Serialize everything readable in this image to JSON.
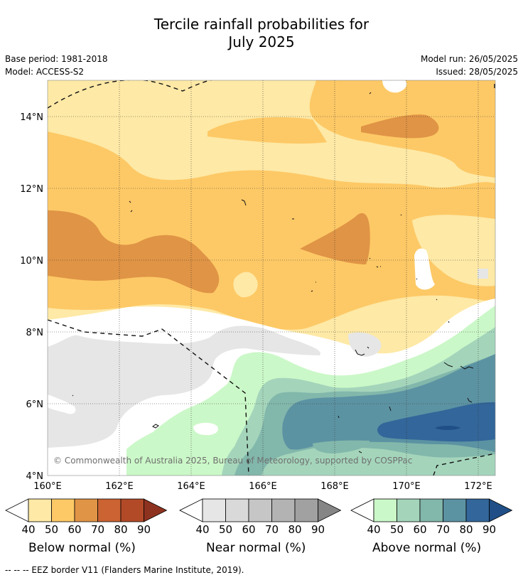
{
  "title_line1": "Tercile rainfall probabilities for",
  "title_line2": "July 2025",
  "base_period": "Base period: 1981-2018",
  "model": "Model: ACCESS-S2",
  "model_run": "Model run: 26/05/2025",
  "issued": "Issued: 28/05/2025",
  "copyright": "© Commonwealth of Australia 2025, Bureau of Meteorology, supported by COSPPac",
  "lat_labels": [
    "14°N",
    "12°N",
    "10°N",
    "8°N",
    "6°N",
    "4°N"
  ],
  "lon_labels": [
    "160°E",
    "162°E",
    "164°E",
    "166°E",
    "168°E",
    "170°E",
    "172°E"
  ],
  "colorbars": [
    {
      "label": "Below normal (%)",
      "ticks": [
        "40",
        "50",
        "60",
        "70",
        "80",
        "90"
      ],
      "colors": [
        "#fee9a6",
        "#fdc966",
        "#e09445",
        "#cb6332",
        "#b24a28",
        "#8e3220"
      ]
    },
    {
      "label": "Near normal (%)",
      "ticks": [
        "40",
        "50",
        "60",
        "70",
        "80",
        "90"
      ],
      "colors": [
        "#e6e6e6",
        "#d9d9d9",
        "#c6c6c6",
        "#b3b3b3",
        "#a1a1a1",
        "#858585"
      ]
    },
    {
      "label": "Above normal (%)",
      "ticks": [
        "40",
        "50",
        "60",
        "70",
        "80",
        "90"
      ],
      "colors": [
        "#cbf8c8",
        "#a4d5bb",
        "#82b7ab",
        "#5c93a3",
        "#33669a",
        "#1f4f86"
      ]
    }
  ],
  "footnote": "--  --  -- EEZ border V11 (Flanders Marine Institute, 2019)."
}
